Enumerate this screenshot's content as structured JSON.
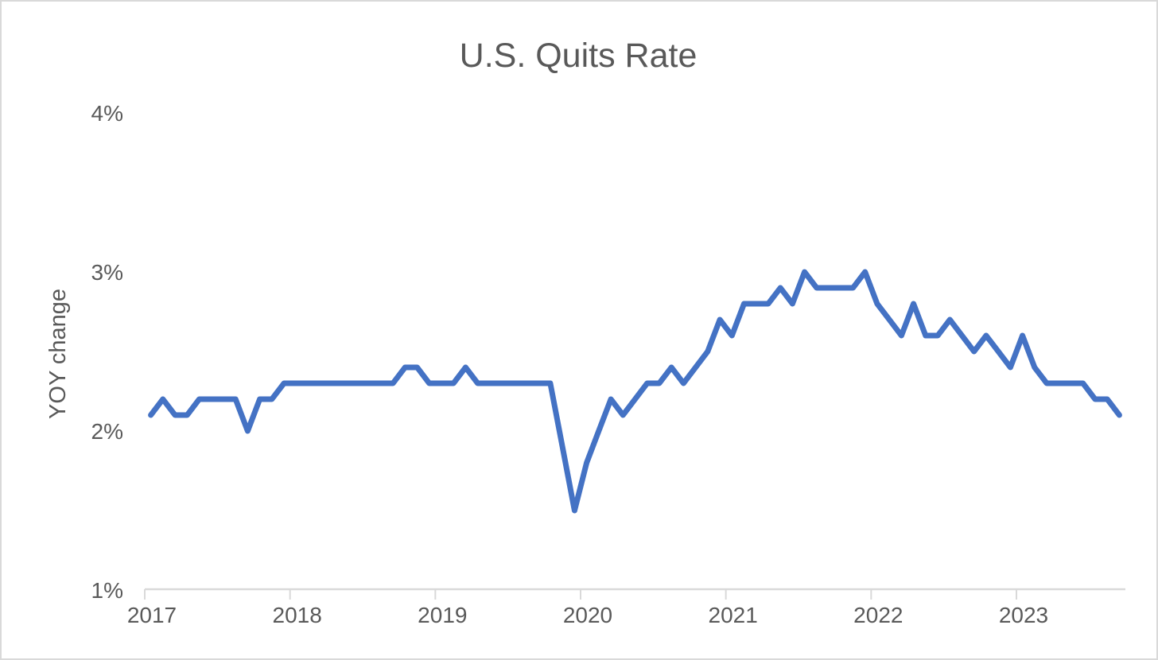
{
  "chart_data": {
    "type": "line",
    "title": "U.S. Quits Rate",
    "xlabel": "",
    "ylabel": "YOY change",
    "grid": false,
    "legend": false,
    "ylim": [
      1,
      4
    ],
    "y_axis": {
      "label": "YOY change",
      "ticks": [
        {
          "label": "4%",
          "value": 4
        },
        {
          "label": "3%",
          "value": 3
        },
        {
          "label": "2%",
          "value": 2
        },
        {
          "label": "1%",
          "value": 1
        }
      ]
    },
    "x_axis": {
      "tick_labels": [
        "2017",
        "2018",
        "2019",
        "2020",
        "2021",
        "2022",
        "2023"
      ],
      "frequency": "monthly",
      "start": "2017-01",
      "end": "2023-09"
    },
    "series": [
      {
        "name": "U.S. quits rate",
        "color": "#4472C4",
        "start": "2017-01",
        "values_by_year": {
          "2017": [
            2.1,
            2.2,
            2.1,
            2.1,
            2.2,
            2.2,
            2.2,
            2.2,
            2.0,
            2.2,
            2.2,
            2.3
          ],
          "2018": [
            2.3,
            2.3,
            2.3,
            2.3,
            2.3,
            2.3,
            2.3,
            2.3,
            2.3,
            2.4,
            2.4,
            2.3
          ],
          "2019": [
            2.3,
            2.3,
            2.4,
            2.3,
            2.3,
            2.3,
            2.3,
            2.3,
            2.3,
            2.3,
            1.9,
            1.5
          ],
          "2020": [
            1.8,
            2.0,
            2.2,
            2.1,
            2.2,
            2.3,
            2.3,
            2.4,
            2.3,
            2.4,
            2.5,
            2.7
          ],
          "2021": [
            2.6,
            2.8,
            2.8,
            2.8,
            2.9,
            2.8,
            3.0,
            2.9,
            2.9,
            2.9,
            2.9,
            3.0
          ],
          "2022": [
            2.8,
            2.7,
            2.6,
            2.8,
            2.6,
            2.6,
            2.7,
            2.6,
            2.5,
            2.6,
            2.5,
            2.4
          ],
          "2023": [
            2.6,
            2.4,
            2.3,
            2.3,
            2.3,
            2.3,
            2.2,
            2.2,
            2.1
          ]
        }
      }
    ]
  },
  "styles": {
    "line_color": "#4472C4",
    "text_color": "#595959",
    "axis_color": "#d9d9d9",
    "background_color": "#ffffff",
    "border_color": "#d9d9d9"
  }
}
